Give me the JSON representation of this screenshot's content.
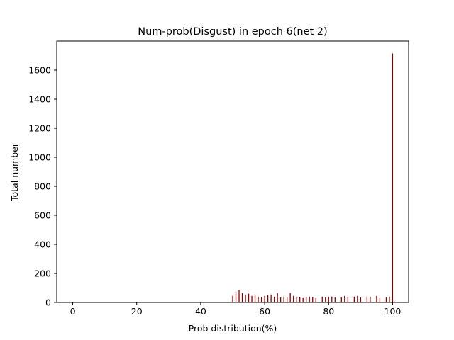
{
  "chart_data": {
    "type": "bar",
    "title": "Num-prob(Disgust) in epoch 6(net 2)",
    "xlabel": "Prob distribution(%)",
    "ylabel": "Total number",
    "xlim": [
      -5,
      105
    ],
    "ylim": [
      0,
      1800
    ],
    "xticks": [
      0,
      20,
      40,
      60,
      80,
      100
    ],
    "yticks": [
      0,
      200,
      400,
      600,
      800,
      1000,
      1200,
      1400,
      1600
    ],
    "grid": false,
    "bar_color": "#8b0000",
    "x": [
      50,
      51,
      52,
      53,
      54,
      55,
      56,
      57,
      58,
      59,
      60,
      61,
      62,
      63,
      64,
      65,
      66,
      67,
      68,
      69,
      70,
      71,
      72,
      73,
      74,
      75,
      76,
      77,
      78,
      79,
      80,
      81,
      82,
      83,
      84,
      85,
      86,
      87,
      88,
      89,
      90,
      91,
      92,
      93,
      94,
      95,
      96,
      97,
      98,
      99,
      100
    ],
    "values": [
      45,
      75,
      85,
      65,
      55,
      60,
      45,
      55,
      40,
      35,
      45,
      50,
      55,
      40,
      65,
      35,
      40,
      35,
      65,
      45,
      40,
      35,
      30,
      40,
      40,
      35,
      30,
      0,
      40,
      35,
      40,
      40,
      35,
      0,
      35,
      45,
      35,
      0,
      40,
      45,
      35,
      0,
      40,
      40,
      0,
      45,
      30,
      0,
      35,
      40,
      1715
    ]
  }
}
